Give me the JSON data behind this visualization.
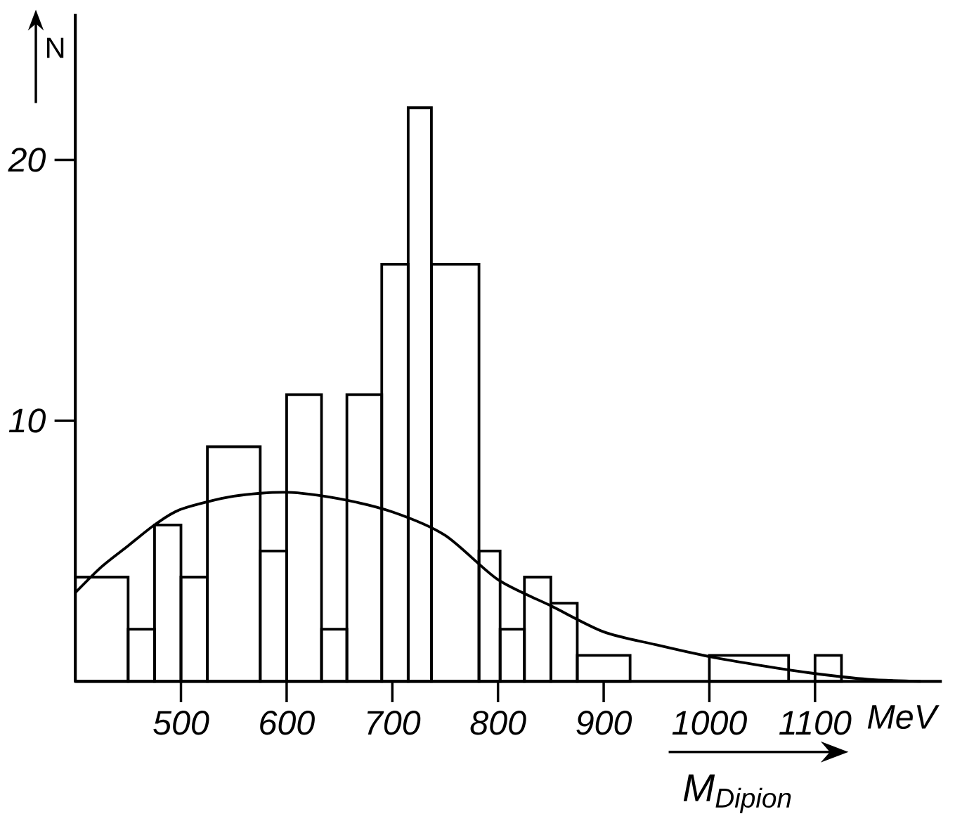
{
  "chart_data": {
    "type": "histogram",
    "xlabel": "M$_{Dipion}$",
    "ylabel": "N",
    "bins": [
      400,
      450,
      475,
      500,
      525,
      575,
      600,
      633,
      657,
      690,
      715,
      737,
      782,
      802,
      825,
      850,
      875,
      925,
      1000,
      1075,
      1100,
      1125
    ],
    "values": [
      4,
      2,
      6,
      4,
      9,
      5,
      11,
      2,
      11,
      16,
      22,
      16,
      5,
      2,
      4,
      3,
      1,
      0,
      1,
      0,
      1
    ],
    "color": "#000000",
    "series": [
      {
        "type": "line",
        "color": "#000000",
        "x": [
          400,
          425,
          450,
          475,
          500,
          550,
          600,
          650,
          700,
          750,
          800,
          850,
          900,
          950,
          1000,
          1050,
          1100,
          1150,
          1200
        ],
        "values": [
          3.4,
          4.4,
          5.2,
          6.0,
          6.6,
          7.1,
          7.25,
          7.0,
          6.5,
          5.6,
          3.9,
          2.9,
          1.9,
          1.4,
          0.95,
          0.6,
          0.3,
          0.08,
          0
        ]
      }
    ],
    "xlim": [
      400,
      1220
    ],
    "ylim": [
      0,
      25.6
    ],
    "xticks": [
      500,
      600,
      700,
      800,
      900,
      1000,
      1100
    ],
    "yticks": [
      10,
      20
    ],
    "annotations": [
      "MeV"
    ]
  }
}
